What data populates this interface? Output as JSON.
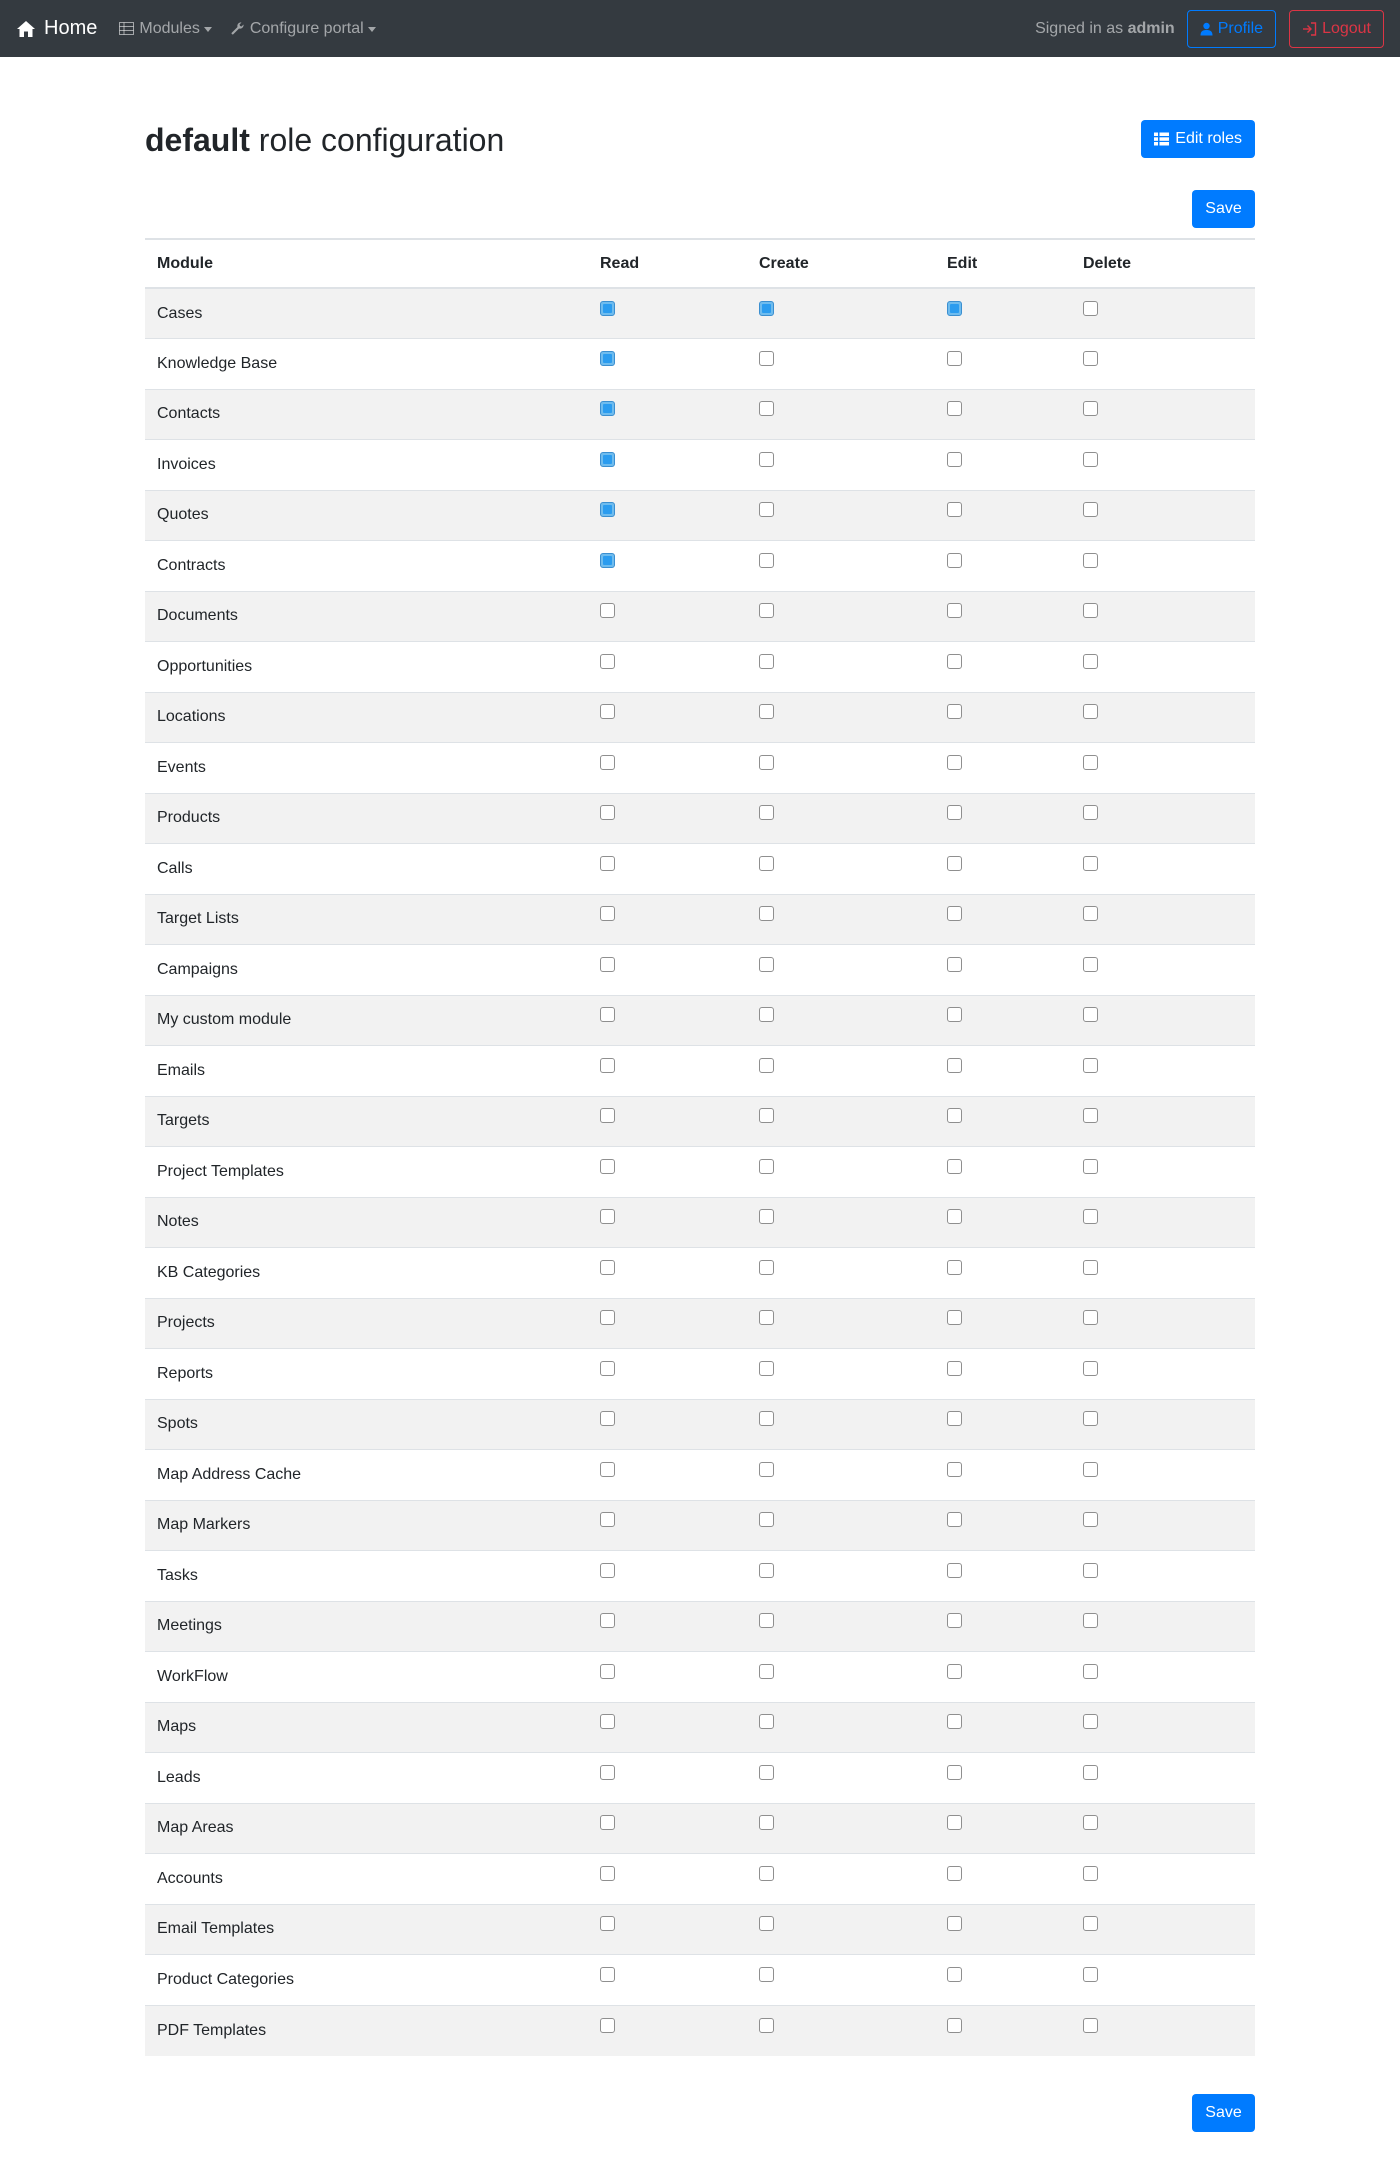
{
  "navbar": {
    "brand": "Home",
    "modules": "Modules",
    "configure_portal": "Configure portal",
    "signed_in_prefix": "Signed in as",
    "user": "admin",
    "profile": "Profile",
    "logout": "Logout"
  },
  "page": {
    "title_strong": "default",
    "title_rest": " role configuration",
    "edit_roles": "Edit roles",
    "save": "Save"
  },
  "table": {
    "headers": [
      "Module",
      "Read",
      "Create",
      "Edit",
      "Delete"
    ],
    "rows": [
      {
        "module": "Cases",
        "read": true,
        "create": true,
        "edit": true,
        "delete": false
      },
      {
        "module": "Knowledge Base",
        "read": true,
        "create": false,
        "edit": false,
        "delete": false
      },
      {
        "module": "Contacts",
        "read": true,
        "create": false,
        "edit": false,
        "delete": false
      },
      {
        "module": "Invoices",
        "read": true,
        "create": false,
        "edit": false,
        "delete": false
      },
      {
        "module": "Quotes",
        "read": true,
        "create": false,
        "edit": false,
        "delete": false
      },
      {
        "module": "Contracts",
        "read": true,
        "create": false,
        "edit": false,
        "delete": false
      },
      {
        "module": "Documents",
        "read": false,
        "create": false,
        "edit": false,
        "delete": false
      },
      {
        "module": "Opportunities",
        "read": false,
        "create": false,
        "edit": false,
        "delete": false
      },
      {
        "module": "Locations",
        "read": false,
        "create": false,
        "edit": false,
        "delete": false
      },
      {
        "module": "Events",
        "read": false,
        "create": false,
        "edit": false,
        "delete": false
      },
      {
        "module": "Products",
        "read": false,
        "create": false,
        "edit": false,
        "delete": false
      },
      {
        "module": "Calls",
        "read": false,
        "create": false,
        "edit": false,
        "delete": false
      },
      {
        "module": "Target Lists",
        "read": false,
        "create": false,
        "edit": false,
        "delete": false
      },
      {
        "module": "Campaigns",
        "read": false,
        "create": false,
        "edit": false,
        "delete": false
      },
      {
        "module": "My custom module",
        "read": false,
        "create": false,
        "edit": false,
        "delete": false
      },
      {
        "module": "Emails",
        "read": false,
        "create": false,
        "edit": false,
        "delete": false
      },
      {
        "module": "Targets",
        "read": false,
        "create": false,
        "edit": false,
        "delete": false
      },
      {
        "module": "Project Templates",
        "read": false,
        "create": false,
        "edit": false,
        "delete": false
      },
      {
        "module": "Notes",
        "read": false,
        "create": false,
        "edit": false,
        "delete": false
      },
      {
        "module": "KB Categories",
        "read": false,
        "create": false,
        "edit": false,
        "delete": false
      },
      {
        "module": "Projects",
        "read": false,
        "create": false,
        "edit": false,
        "delete": false
      },
      {
        "module": "Reports",
        "read": false,
        "create": false,
        "edit": false,
        "delete": false
      },
      {
        "module": "Spots",
        "read": false,
        "create": false,
        "edit": false,
        "delete": false
      },
      {
        "module": "Map Address Cache",
        "read": false,
        "create": false,
        "edit": false,
        "delete": false
      },
      {
        "module": "Map Markers",
        "read": false,
        "create": false,
        "edit": false,
        "delete": false
      },
      {
        "module": "Tasks",
        "read": false,
        "create": false,
        "edit": false,
        "delete": false
      },
      {
        "module": "Meetings",
        "read": false,
        "create": false,
        "edit": false,
        "delete": false
      },
      {
        "module": "WorkFlow",
        "read": false,
        "create": false,
        "edit": false,
        "delete": false
      },
      {
        "module": "Maps",
        "read": false,
        "create": false,
        "edit": false,
        "delete": false
      },
      {
        "module": "Leads",
        "read": false,
        "create": false,
        "edit": false,
        "delete": false
      },
      {
        "module": "Map Areas",
        "read": false,
        "create": false,
        "edit": false,
        "delete": false
      },
      {
        "module": "Accounts",
        "read": false,
        "create": false,
        "edit": false,
        "delete": false
      },
      {
        "module": "Email Templates",
        "read": false,
        "create": false,
        "edit": false,
        "delete": false
      },
      {
        "module": "Product Categories",
        "read": false,
        "create": false,
        "edit": false,
        "delete": false
      },
      {
        "module": "PDF Templates",
        "read": false,
        "create": false,
        "edit": false,
        "delete": false
      }
    ]
  },
  "colors": {
    "navbar_bg": "#343a40",
    "primary": "#007bff",
    "danger": "#dc3545",
    "checkbox_checked": "#2b9cef"
  },
  "icons": {
    "brand": "home-icon",
    "modules": "table-icon",
    "configure": "wrench-icon",
    "profile": "user-icon",
    "logout": "sign-out-icon",
    "edit_roles": "list-icon"
  }
}
